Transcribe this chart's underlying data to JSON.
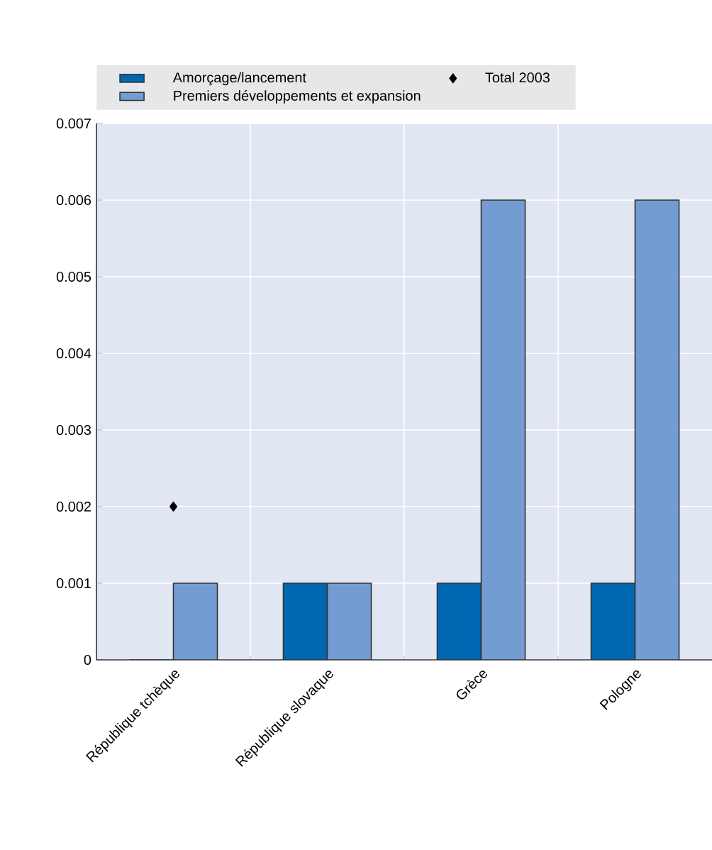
{
  "chart_data": {
    "type": "bar",
    "categories": [
      "République tchèque",
      "République slovaque",
      "Grèce",
      "Pologne"
    ],
    "series": [
      {
        "name": "Amorçage/lancement",
        "color": "#0068b3",
        "values": [
          0,
          0.001,
          0.001,
          0.001
        ]
      },
      {
        "name": "Premiers développements et expansion",
        "color": "#739cd3",
        "values": [
          0.001,
          0.001,
          0.006,
          0.006
        ]
      },
      {
        "name": "Total 2003",
        "type": "scatter",
        "marker": "diamond",
        "color": "#000000",
        "x": [
          "République tchèque",
          "République slovaque",
          "Grèce",
          "Pologne"
        ],
        "values": [
          0.002,
          null,
          null,
          null
        ]
      }
    ],
    "ylim": [
      0,
      0.007
    ],
    "yticks": [
      0,
      0.001,
      0.002,
      0.003,
      0.004,
      0.005,
      0.006,
      0.007
    ],
    "grid": true,
    "legend": "top"
  }
}
